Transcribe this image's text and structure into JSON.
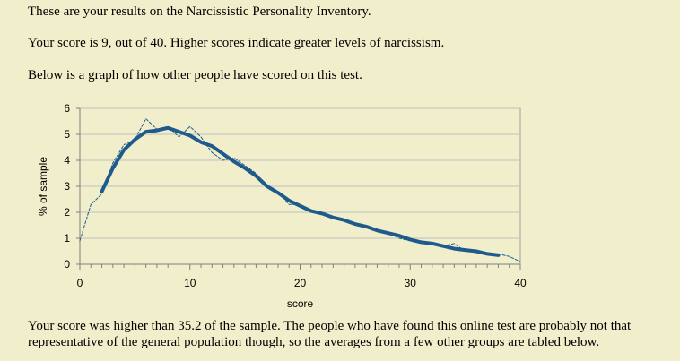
{
  "intro": {
    "line1": "These are your results on the Narcissistic Personality Inventory.",
    "line2": "Your score is 9, out of 40. Higher scores indicate greater levels of narcissism.",
    "line3": "Below is a graph of how other people have scored on this test."
  },
  "outro": {
    "text": "Your score was higher than 35.2 of the sample. The people who have found this online test are probably not that representative of the general population though, so the averages from a few other groups are tabled below."
  },
  "colors": {
    "background": "#f1eecb",
    "plot_bg": "#f1eecb",
    "grid": "#c0c0c0",
    "series": "#1f5a8c"
  },
  "chart_data": {
    "type": "line",
    "xlabel": "score",
    "ylabel": "% of sample",
    "xlim": [
      0,
      40
    ],
    "ylim": [
      0,
      6
    ],
    "xticks": [
      0,
      10,
      20,
      30,
      40
    ],
    "yticks": [
      0,
      1,
      2,
      3,
      4,
      5,
      6
    ],
    "grid": true,
    "series": [
      {
        "style": "dashed",
        "x": [
          0,
          1,
          2,
          3,
          4,
          5,
          6,
          7,
          8,
          9,
          10,
          11,
          12,
          13,
          14,
          15,
          16,
          17,
          18,
          19,
          20,
          21,
          22,
          23,
          24,
          25,
          26,
          27,
          28,
          29,
          30,
          31,
          32,
          33,
          34,
          35,
          36,
          37,
          38,
          39,
          40
        ],
        "y": [
          0.9,
          2.3,
          2.7,
          3.9,
          4.6,
          4.8,
          5.6,
          5.2,
          5.3,
          4.9,
          5.3,
          4.9,
          4.3,
          4.0,
          4.1,
          3.8,
          3.5,
          3.0,
          2.8,
          2.3,
          2.3,
          2.1,
          2.0,
          1.8,
          1.7,
          1.5,
          1.4,
          1.3,
          1.2,
          1.0,
          0.9,
          0.8,
          0.8,
          0.7,
          0.8,
          0.5,
          0.5,
          0.4,
          0.4,
          0.3,
          0.1
        ]
      },
      {
        "style": "solid",
        "x": [
          2,
          3,
          4,
          5,
          6,
          7,
          8,
          9,
          10,
          11,
          12,
          13,
          14,
          15,
          16,
          17,
          18,
          19,
          20,
          21,
          22,
          23,
          24,
          25,
          26,
          27,
          28,
          29,
          30,
          31,
          32,
          33,
          34,
          35,
          36,
          37,
          38
        ],
        "y": [
          2.8,
          3.7,
          4.4,
          4.8,
          5.1,
          5.15,
          5.25,
          5.1,
          4.95,
          4.7,
          4.55,
          4.25,
          3.95,
          3.7,
          3.4,
          3.0,
          2.75,
          2.45,
          2.25,
          2.05,
          1.95,
          1.8,
          1.7,
          1.55,
          1.45,
          1.3,
          1.2,
          1.1,
          0.95,
          0.85,
          0.8,
          0.7,
          0.6,
          0.55,
          0.5,
          0.4,
          0.35
        ]
      }
    ]
  }
}
